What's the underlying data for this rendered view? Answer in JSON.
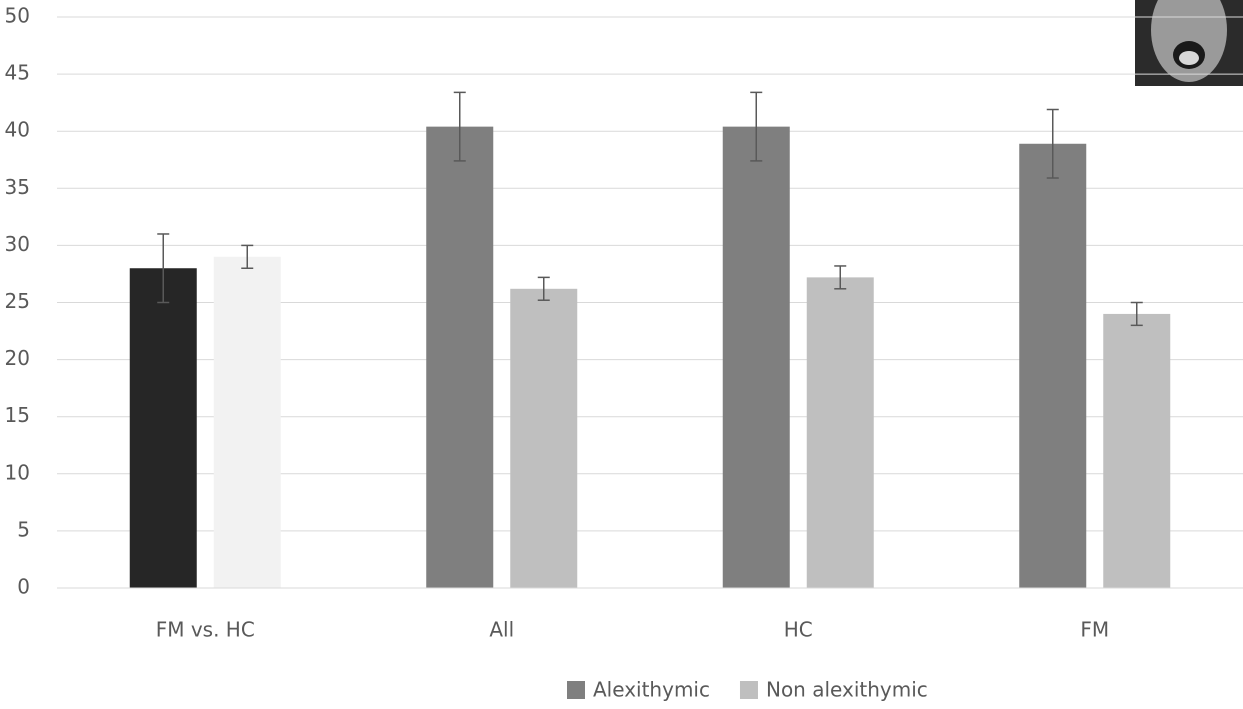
{
  "chart_data": {
    "type": "bar",
    "categories": [
      "FM vs. HC",
      "All",
      "HC",
      "FM"
    ],
    "series": [
      {
        "name": "Alexithymic",
        "color": "#7f7f7f",
        "bar_colors": [
          "#262626",
          "#7f7f7f",
          "#7f7f7f",
          "#7f7f7f"
        ],
        "values": [
          28,
          40.4,
          40.4,
          38.9
        ],
        "errors": [
          3,
          3,
          3,
          3
        ]
      },
      {
        "name": "Non alexithymic",
        "color": "#bfbfbf",
        "bar_colors": [
          "#f2f2f2",
          "#bfbfbf",
          "#bfbfbf",
          "#bfbfbf"
        ],
        "values": [
          29,
          26.2,
          27.2,
          24
        ],
        "errors": [
          1,
          1,
          1,
          1
        ]
      }
    ],
    "ylim": [
      0,
      50
    ],
    "yticks": [
      0,
      5,
      10,
      15,
      20,
      25,
      30,
      35,
      40,
      45,
      50
    ],
    "grid": true,
    "legend": "bottom"
  }
}
